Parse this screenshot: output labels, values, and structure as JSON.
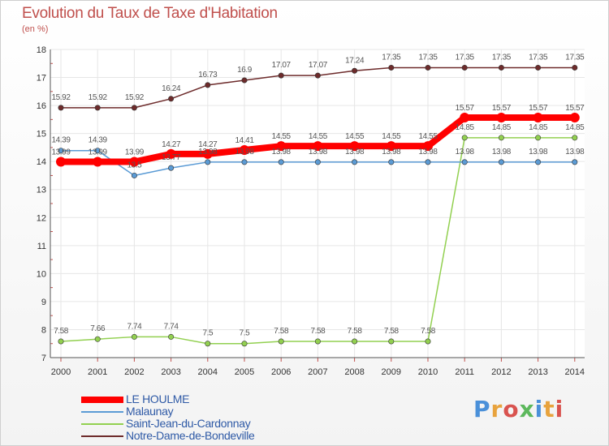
{
  "title": "Evolution du Taux de Taxe d'Habitation",
  "subtitle": "(en %)",
  "logo_text": "Proxiti",
  "colors": {
    "title": "#c0504d",
    "axis": "#555555",
    "grid": "#e6e6e6",
    "legend_text": "#2f5aa6"
  },
  "chart_data": {
    "type": "line",
    "x": [
      "2000",
      "2001",
      "2002",
      "2003",
      "2004",
      "2005",
      "2006",
      "2007",
      "2008",
      "2009",
      "2010",
      "2011",
      "2012",
      "2013",
      "2014"
    ],
    "ylim": [
      7,
      18
    ],
    "yticks": [
      7,
      8,
      9,
      10,
      11,
      12,
      13,
      14,
      15,
      16,
      17,
      18
    ],
    "ytick_labels": [
      "7",
      "8",
      "9",
      "10",
      "11",
      "12",
      "13",
      "14",
      "15",
      "16",
      "17",
      "18"
    ],
    "grid": true,
    "legend_position": "bottom-left",
    "series": [
      {
        "name": "LE HOULME",
        "color": "#ff0000",
        "values": [
          13.99,
          13.99,
          13.99,
          14.27,
          14.27,
          14.41,
          14.55,
          14.55,
          14.55,
          14.55,
          14.55,
          15.57,
          15.57,
          15.57,
          15.57
        ],
        "labels": [
          "13.99",
          "13.99",
          "13.99",
          "14.27",
          "14.27",
          "14.41",
          "14.55",
          "14.55",
          "14.55",
          "14.55",
          "14.55",
          "15.57",
          "15.57",
          "15.57",
          "15.57"
        ]
      },
      {
        "name": "Malaunay",
        "color": "#5b9bd5",
        "values": [
          14.39,
          14.39,
          13.5,
          13.77,
          13.98,
          13.98,
          13.98,
          13.98,
          13.98,
          13.98,
          13.98,
          13.98,
          13.98,
          13.98,
          13.98
        ],
        "labels": [
          "14.39",
          "14.39",
          "13.5",
          "13.77",
          "13.98",
          "13.98",
          "13.98",
          "13.98",
          "13.98",
          "13.98",
          "13.98",
          "13.98",
          "13.98",
          "13.98",
          "13.98"
        ]
      },
      {
        "name": "Saint-Jean-du-Cardonnay",
        "color": "#92d050",
        "values": [
          7.58,
          7.66,
          7.74,
          7.74,
          7.5,
          7.5,
          7.58,
          7.58,
          7.58,
          7.58,
          7.58,
          14.85,
          14.85,
          14.85,
          14.85
        ],
        "labels": [
          "7.58",
          "7.66",
          "7.74",
          "7.74",
          "7.5",
          "7.5",
          "7.58",
          "7.58",
          "7.58",
          "7.58",
          "7.58",
          "14.85",
          "14.85",
          "14.85",
          "14.85"
        ]
      },
      {
        "name": "Notre-Dame-de-Bondeville",
        "color": "#6d2b2b",
        "values": [
          15.92,
          15.92,
          15.92,
          16.24,
          16.73,
          16.9,
          17.07,
          17.07,
          17.24,
          17.35,
          17.35,
          17.35,
          17.35,
          17.35,
          17.35
        ],
        "labels": [
          "15.92",
          "15.92",
          "15.92",
          "16.24",
          "16.73",
          "16.9",
          "17.07",
          "17.07",
          "17.24",
          "17.35",
          "17.35",
          "17.35",
          "17.35",
          "17.35",
          "17.35"
        ]
      }
    ]
  }
}
